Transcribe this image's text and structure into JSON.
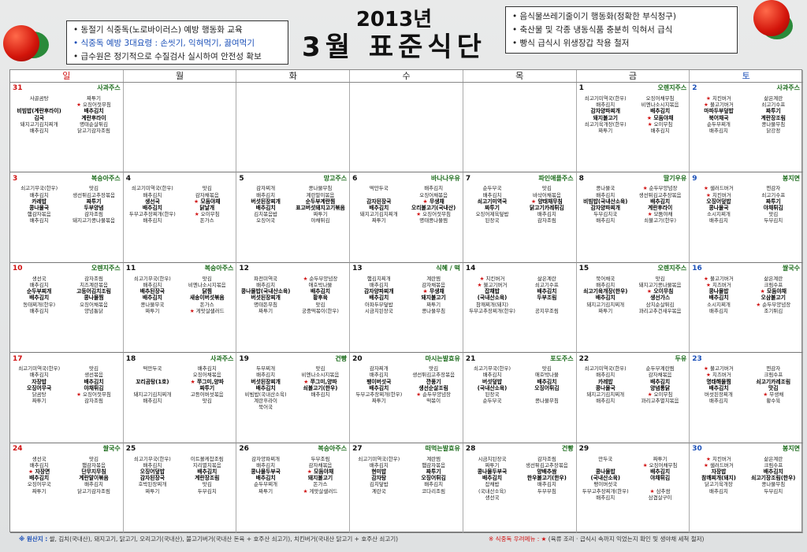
{
  "note_left": {
    "lines": [
      "• 동절기 식중독(노로바이러스) 예방 행동화 교육",
      "• 식중독 예방 3대요령 : 손씻기, 익혀먹기, 끓여먹기",
      "• 급수원은 정기적으로 수질검사 실시하여 안전성 확보"
    ]
  },
  "title": {
    "year": "2013년",
    "main": "3월 표준식단"
  },
  "note_right": {
    "lines": [
      "• 음식물쓰레기줄이기 행동화(정확한 부식청구)",
      "• 축산물 및 각종 냉동식품 충분히 익혀서 급식",
      "• 빵식 급식시 위생장갑 착용 철저"
    ]
  },
  "weekdays": [
    "일",
    "월",
    "화",
    "수",
    "목",
    "금",
    "토"
  ],
  "colors": {
    "sunday": "#d01010",
    "saturday": "#1a4fb8",
    "snack": "#1b6b1b",
    "star": "#d01010"
  },
  "days": [
    {
      "d": "31",
      "snack": "사과주스",
      "items": [
        "사골곰탕",
        "짜투기",
        "",
        "★ 오징어젓무침",
        "비빔밥(계란후라이)",
        "배추김치",
        "김국",
        "계란후라이",
        "돼지고기김치찌개",
        "명태순살튀김",
        "배추김치",
        "닭고기감자조림"
      ]
    },
    {
      "d": "",
      "snack": "",
      "items": []
    },
    {
      "d": "",
      "snack": "",
      "items": []
    },
    {
      "d": "",
      "snack": "",
      "items": []
    },
    {
      "d": "",
      "snack": "",
      "items": []
    },
    {
      "d": "1",
      "snack": "오렌지주스",
      "items": [
        "쇠고기미역국(한우)",
        "오징어채무침",
        "배추김치",
        "비엔나소시지볶음",
        "감자양파찌개",
        "배추김치",
        "돼지불고기",
        "★ 모둠야채",
        "쇠고기육개장(한우)",
        "★ 오이무침",
        "짜투기",
        "배추김치"
      ]
    },
    {
      "d": "2",
      "snack": "사과주스",
      "items": [
        "★ 치킨버거",
        "삶은계란",
        "★ 불고기버거",
        "쇠고기수프",
        "마파두부덮밥",
        "짜투기",
        "북어채국",
        "계란장조림",
        "순두부찌개",
        "콩나물무침",
        "배추김치",
        "닭강정"
      ]
    },
    {
      "d": "3",
      "snack": "복숭아주스",
      "items": [
        "쇠고기무국(한우)",
        "맛김",
        "배추김치",
        "생선튀김고추장볶음",
        "카레밥",
        "짜투기",
        "콩나물국",
        "두부양념",
        "햄감자볶음",
        "감자조림",
        "배추김치",
        "돼지고기콩나물볶음"
      ]
    },
    {
      "d": "4",
      "snack": "",
      "items": [
        "쇠고기미역국(한우)",
        "맛김",
        "배추김치",
        "감자채볶음",
        "생선국",
        "★ 모둠야채",
        "배추김치",
        "닭날개",
        "두부고추장찌개(한우)",
        "★ 오이무침",
        "배추김치",
        "돈가스"
      ]
    },
    {
      "d": "5",
      "snack": "망고주스",
      "items": [
        "감자찌개",
        "콩나물무침",
        "배추김치",
        "계란말이볶음",
        "버섯된장찌개",
        "순두부계란찜",
        "배추김치",
        "표고버섯돼지고기볶음",
        "김치볶음밥",
        "짜투기",
        "오징어국",
        "야채튀김"
      ]
    },
    {
      "d": "6",
      "snack": "바나나우유",
      "items": [
        "떡만두국",
        "배추김치",
        "",
        "오징어채볶음",
        "감자된장국",
        "★ 무생채",
        "배추김치",
        "오리불고기(국내산)",
        "돼지고기김치찌개",
        "★ 오징어젓무침",
        "짜투기",
        "명태콩나물찜"
      ]
    },
    {
      "d": "7",
      "snack": "파인애플주스",
      "items": [
        "순두부국",
        "맛김",
        "배추김치",
        "바삭어채볶음",
        "쇠고기미역국",
        "★ 양태채무침",
        "짜투기",
        "닭고기카레튀김",
        "오징어제육덮밥",
        "배추김치",
        "된장국",
        "감자조림"
      ]
    },
    {
      "d": "8",
      "snack": "딸기우유",
      "items": [
        "콩나물국",
        "★ 순두부양념장",
        "배추김치",
        "생선튀김고추장볶음",
        "비빔밥(국내산소육)",
        "배추김치",
        "감자양파찌개",
        "계란후라이",
        "두부김치국",
        "★ 모둠야채",
        "배추김치",
        "쇠불고기(한우)"
      ]
    },
    {
      "d": "9",
      "snack": "봉지면",
      "items": [
        "★ 샐러드버거",
        "찐감자",
        "★ 치킨버거",
        "쇠고기수프",
        "오징어덮밥",
        "짜투기",
        "콩나물국",
        "야채튀김",
        "소시지찌개",
        "맛김",
        "배추김치",
        "두부김치"
      ]
    },
    {
      "d": "10",
      "snack": "오렌지주스",
      "items": [
        "생선국",
        "감자조림",
        "배추김치",
        "치즈계란볶음",
        "순두부찌개",
        "고등어김치조림",
        "배추김치",
        "콩나물찜",
        "동태찌개(한우)",
        "오징어채볶음",
        "배추김치",
        "양념통닭"
      ]
    },
    {
      "d": "11",
      "snack": "복숭아주스",
      "items": [
        "쇠고기무국(한우)",
        "맛김",
        "배추김치",
        "비엔나소시지볶음",
        "배추된장국",
        "닭찜",
        "배추김치",
        "새송이버섯볶음",
        "콩나물무국",
        "돈가스",
        "짜투기",
        "★ 게맛살샐러드"
      ]
    },
    {
      "d": "12",
      "snack": "",
      "items": [
        "파전미역국",
        "★ 순두부양념장",
        "배추김치",
        "애호박나물",
        "콩나물밥(국내산소육)",
        "배추김치",
        "버섯된장찌개",
        "황후육",
        "명태돈무침",
        "맛김",
        "짜투기",
        "궁중떡볶이(한우)"
      ]
    },
    {
      "d": "13",
      "snack": "식혜 / 떡",
      "items": [
        "햄김치찌개",
        "계란찜",
        "배추김치",
        "감자채볶음",
        "감자양파찌개",
        "★ 무생채",
        "배추김치",
        "돼지불고기",
        "아파두부덮밥",
        "짜투기",
        "시금치된장국",
        "콩나물무침"
      ]
    },
    {
      "d": "14",
      "snack": "",
      "items": [
        "★ 치킨버거",
        "삶은계란",
        "★ 불고기버거",
        "쇠고기수프",
        "잡채밥",
        "배추김치",
        "(국내산소육)",
        "두부조림",
        "참깨찌개(돼지)",
        "",
        "두부고추장찌개(한우)",
        "공지무조림"
      ]
    },
    {
      "d": "15",
      "snack": "오렌지주스",
      "items": [
        "북어채국",
        "맛김",
        "배추김치",
        "돼지고기콩나물볶음",
        "쇠고기육개장(한우)",
        "★ 오이무침",
        "배추김치",
        "생선가스",
        "돼지고기김치찌개",
        "삼치순살튀김",
        "짜투기",
        "꽈리고추건새우볶음"
      ]
    },
    {
      "d": "16",
      "snack": "쌀국수",
      "items": [
        "★ 불고기버거",
        "삶은계란",
        "★ 치즈버거",
        "크림수프",
        "콩나물밥",
        "★ 모둠야채",
        "배추김치",
        "오삼불고기",
        "소시지찌개",
        "★ 순두부양념장",
        "배추김치",
        "조기튀김"
      ]
    },
    {
      "d": "17",
      "snack": "",
      "items": [
        "쇠고기미역국(한우)",
        "맛김",
        "배추김치",
        "생선볶음",
        "자장밥",
        "배추김치",
        "오징어무국",
        "야채튀김",
        "닭곰탕",
        "★ 오징어젓무침",
        "짜투기",
        "감자조림"
      ]
    },
    {
      "d": "18",
      "snack": "사과주스",
      "items": [
        "떡만두국",
        "배추김치",
        "",
        "오징어채볶음",
        "꼬리곰탕(1호)",
        "★ 쭈그미,양파",
        "",
        "짜투기",
        "돼지고기김치찌개",
        "고등어버섯볶음",
        "배추김치",
        "맛김"
      ]
    },
    {
      "d": "19",
      "snack": "건빵",
      "items": [
        "두부찌개",
        "맛김",
        "배추김치",
        "비엔나소시지볶음",
        "버섯된장찌개",
        "★ 쭈그미,양파",
        "배추김치",
        "쇠불고기(한우)",
        "비빔밥(국내산소육)",
        "배추김치",
        "계란후라이",
        "",
        "북어국",
        ""
      ]
    },
    {
      "d": "20",
      "snack": "마시는발효유",
      "items": [
        "감자찌개",
        "맛김",
        "배추김치",
        "생선튀김고추장볶음",
        "팽이버섯국",
        "깐풍기",
        "배추김치",
        "생선순살조림",
        "두부고추장찌개(한우)",
        "★ 순두부양념장",
        "짜투기",
        "떡볶이"
      ]
    },
    {
      "d": "21",
      "snack": "포도주스",
      "items": [
        "쇠고기무국(한우)",
        "맛김",
        "배추김치",
        "애호박나물",
        "버섯덮밥",
        "배추김치",
        "(국내산소육)",
        "오징어튀김",
        "된장국",
        "",
        "순두부국",
        "콩나물무침"
      ]
    },
    {
      "d": "22",
      "snack": "두유",
      "items": [
        "쇠고기미역국(한우)",
        "순두부계란찜",
        "배추김치",
        "감자채볶음",
        "카레밥",
        "배추김치",
        "콩나물국",
        "양념통닭",
        "돼지고기김치찌개",
        "★ 오이무침",
        "배추김치",
        "꽈리고추멸치볶음"
      ]
    },
    {
      "d": "23",
      "snack": "",
      "items": [
        "★ 불고기버거",
        "찐감자",
        "★ 치즈버거",
        "크림수프",
        "명태해물찜",
        "쇠고기카레조림",
        "배추김치",
        "맛김",
        "버섯된장찌개",
        "★ 무생채",
        "배추김치",
        "황수육"
      ]
    },
    {
      "d": "24",
      "snack": "쌀국수",
      "items": [
        "생선국",
        "맛김",
        "배추김치",
        "햄감자볶음",
        "★ 자장면",
        "단무지무침",
        "배추김치",
        "계란말이볶음",
        "오징어무국",
        "배추김치",
        "짜투기",
        "닭고기감자조림"
      ]
    },
    {
      "d": "25",
      "snack": "",
      "items": [
        "쇠고기무국(한우)",
        "이트볼케찹조림",
        "배추김치",
        "지리멸치볶음",
        "오징어덮밥",
        "배추김치",
        "감자된장국",
        "계란장조림",
        "호박된장찌개",
        "맛김",
        "짜투기",
        "두부김치"
      ]
    },
    {
      "d": "26",
      "snack": "복숭아주스",
      "items": [
        "감자양파찌개",
        "두부조림",
        "배추김치",
        "감자채볶음",
        "콩나물두부국",
        "★ 모둠야채",
        "배추김치",
        "돼지불고기",
        "순두부찌개",
        "돈가스",
        "짜투기",
        "★ 게맛살샐러드"
      ]
    },
    {
      "d": "27",
      "snack": "떠먹는발효유",
      "items": [
        "쇠고기미역국(한우)",
        "계란찜",
        "배추김치",
        "햄감자볶음",
        "현미밥",
        "짜투기",
        "감자탕",
        "오징어튀김",
        "김치덮밥",
        "배추김치",
        "계란국",
        "코다리조림"
      ]
    },
    {
      "d": "28",
      "snack": "건빵",
      "items": [
        "시금치된장국",
        "감자조림",
        "짜투기",
        "생선튀김고추장볶음",
        "콩나물두부국",
        "양배추쌈",
        "배추김치",
        "한우불고기(한우)",
        "잡채밥",
        "배추김치",
        "(국내산소육)",
        "두부부침",
        "생선국",
        ""
      ]
    },
    {
      "d": "29",
      "snack": "",
      "items": [
        "만두국",
        "짜투기",
        "",
        "★ 오징어채무침",
        "콩나물밥",
        "배추김치",
        "(국내산소육)",
        "야채튀김",
        "팽이버섯국",
        "",
        "두부고추장찌개(한우)",
        "★ 삼추쌈",
        "배추김치",
        "삼겹살구이"
      ]
    },
    {
      "d": "30",
      "snack": "봉지면",
      "items": [
        "★ 치킨버거",
        "삶은계란",
        "★ 샐러드버거",
        "크림수프",
        "자장밥",
        "배추김치",
        "참깨찌개(돼지)",
        "쇠고기장조림(한우)",
        "닭고기육개장",
        "콩나물무침",
        "배추김치",
        "두부김치"
      ]
    }
  ],
  "footer": {
    "left_label": "※ 원산지 :",
    "left_text": "쌀, 김치(국내산), 돼지고기, 닭고기, 오리고기(국내산), 불고기버거(국내산 돈육 + 호주산 쇠고기), 치킨버거(국내산 닭고기 + 호주산 쇠고기)",
    "right_label": "※ 식중독 우려메뉴 : ★",
    "right_text": "(육류 조리 · 급식시 속까지 익었는지 확인 및 생야채 세척 철저)"
  }
}
